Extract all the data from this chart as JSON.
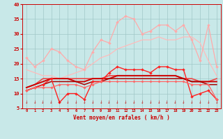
{
  "xlabel": "Vent moyen/en rafales ( km/h )",
  "xlim": [
    -0.5,
    23.5
  ],
  "ylim": [
    5,
    40
  ],
  "yticks": [
    5,
    10,
    15,
    20,
    25,
    30,
    35,
    40
  ],
  "xticks": [
    0,
    1,
    2,
    3,
    4,
    5,
    6,
    7,
    8,
    9,
    10,
    11,
    12,
    13,
    14,
    15,
    16,
    17,
    18,
    19,
    20,
    21,
    22,
    23
  ],
  "bg_color": "#c8e8e8",
  "grid_color": "#a0c8c8",
  "series": [
    {
      "x": [
        0,
        1,
        2,
        3,
        4,
        5,
        6,
        7,
        8,
        9,
        10,
        11,
        12,
        13,
        14,
        15,
        16,
        17,
        18,
        19,
        20,
        21,
        22,
        23
      ],
      "y": [
        22,
        19,
        21,
        25,
        24,
        21,
        19,
        18,
        24,
        28,
        27,
        34,
        36,
        35,
        30,
        31,
        33,
        33,
        31,
        33,
        28,
        21,
        33,
        19
      ],
      "color": "#ffaaaa",
      "lw": 0.9,
      "marker": "D",
      "ms": 2.0
    },
    {
      "x": [
        0,
        1,
        2,
        3,
        4,
        5,
        6,
        7,
        8,
        9,
        10,
        11,
        12,
        13,
        14,
        15,
        16,
        17,
        18,
        19,
        20,
        21,
        22,
        23
      ],
      "y": [
        18,
        17,
        16,
        16,
        15,
        16,
        17,
        18,
        20,
        22,
        23,
        25,
        26,
        27,
        28,
        28,
        29,
        28,
        28,
        29,
        29,
        27,
        21,
        16
      ],
      "color": "#ffbbbb",
      "lw": 0.9,
      "marker": null,
      "ms": 0
    },
    {
      "x": [
        0,
        1,
        2,
        3,
        4,
        5,
        6,
        7,
        8,
        9,
        10,
        11,
        12,
        13,
        14,
        15,
        16,
        17,
        18,
        19,
        20,
        21,
        22,
        23
      ],
      "y": [
        12,
        13,
        15,
        15,
        15,
        15,
        15,
        15,
        15,
        15,
        16,
        16,
        16,
        16,
        16,
        16,
        16,
        16,
        16,
        15,
        15,
        14,
        14,
        15
      ],
      "color": "#ee4444",
      "lw": 1.2,
      "marker": null,
      "ms": 0
    },
    {
      "x": [
        0,
        1,
        2,
        3,
        4,
        5,
        6,
        7,
        8,
        9,
        10,
        11,
        12,
        13,
        14,
        15,
        16,
        17,
        18,
        19,
        20,
        21,
        22,
        23
      ],
      "y": [
        12,
        13,
        14,
        15,
        15,
        15,
        14,
        14,
        15,
        15,
        15,
        16,
        16,
        16,
        16,
        16,
        16,
        16,
        16,
        15,
        14,
        14,
        14,
        14
      ],
      "color": "#cc0000",
      "lw": 1.4,
      "marker": null,
      "ms": 0
    },
    {
      "x": [
        0,
        1,
        2,
        3,
        4,
        5,
        6,
        7,
        8,
        9,
        10,
        11,
        12,
        13,
        14,
        15,
        16,
        17,
        18,
        19,
        20,
        21,
        22,
        23
      ],
      "y": [
        11,
        12,
        13,
        14,
        14,
        14,
        14,
        13,
        14,
        14,
        15,
        15,
        15,
        15,
        15,
        15,
        15,
        15,
        15,
        15,
        14,
        14,
        13,
        13
      ],
      "color": "#aa0000",
      "lw": 1.1,
      "marker": null,
      "ms": 0
    },
    {
      "x": [
        0,
        1,
        2,
        3,
        4,
        5,
        6,
        7,
        8,
        9,
        10,
        11,
        12,
        13,
        14,
        15,
        16,
        17,
        18,
        19,
        20,
        21,
        22,
        23
      ],
      "y": [
        11,
        12,
        13,
        15,
        7,
        10,
        10,
        8,
        14,
        14,
        17,
        19,
        18,
        18,
        18,
        17,
        19,
        19,
        18,
        18,
        9,
        10,
        11,
        8
      ],
      "color": "#ff2222",
      "lw": 1.0,
      "marker": "D",
      "ms": 2.0
    },
    {
      "x": [
        0,
        1,
        2,
        3,
        4,
        5,
        6,
        7,
        8,
        9,
        10,
        11,
        12,
        13,
        14,
        15,
        16,
        17,
        18,
        19,
        20,
        21,
        22,
        23
      ],
      "y": [
        11,
        12,
        12,
        12,
        13,
        13,
        13,
        12,
        13,
        14,
        14,
        14,
        14,
        14,
        14,
        14,
        14,
        14,
        14,
        14,
        13,
        13,
        13,
        8
      ],
      "color": "#ff6666",
      "lw": 0.9,
      "marker": "D",
      "ms": 1.8
    }
  ]
}
